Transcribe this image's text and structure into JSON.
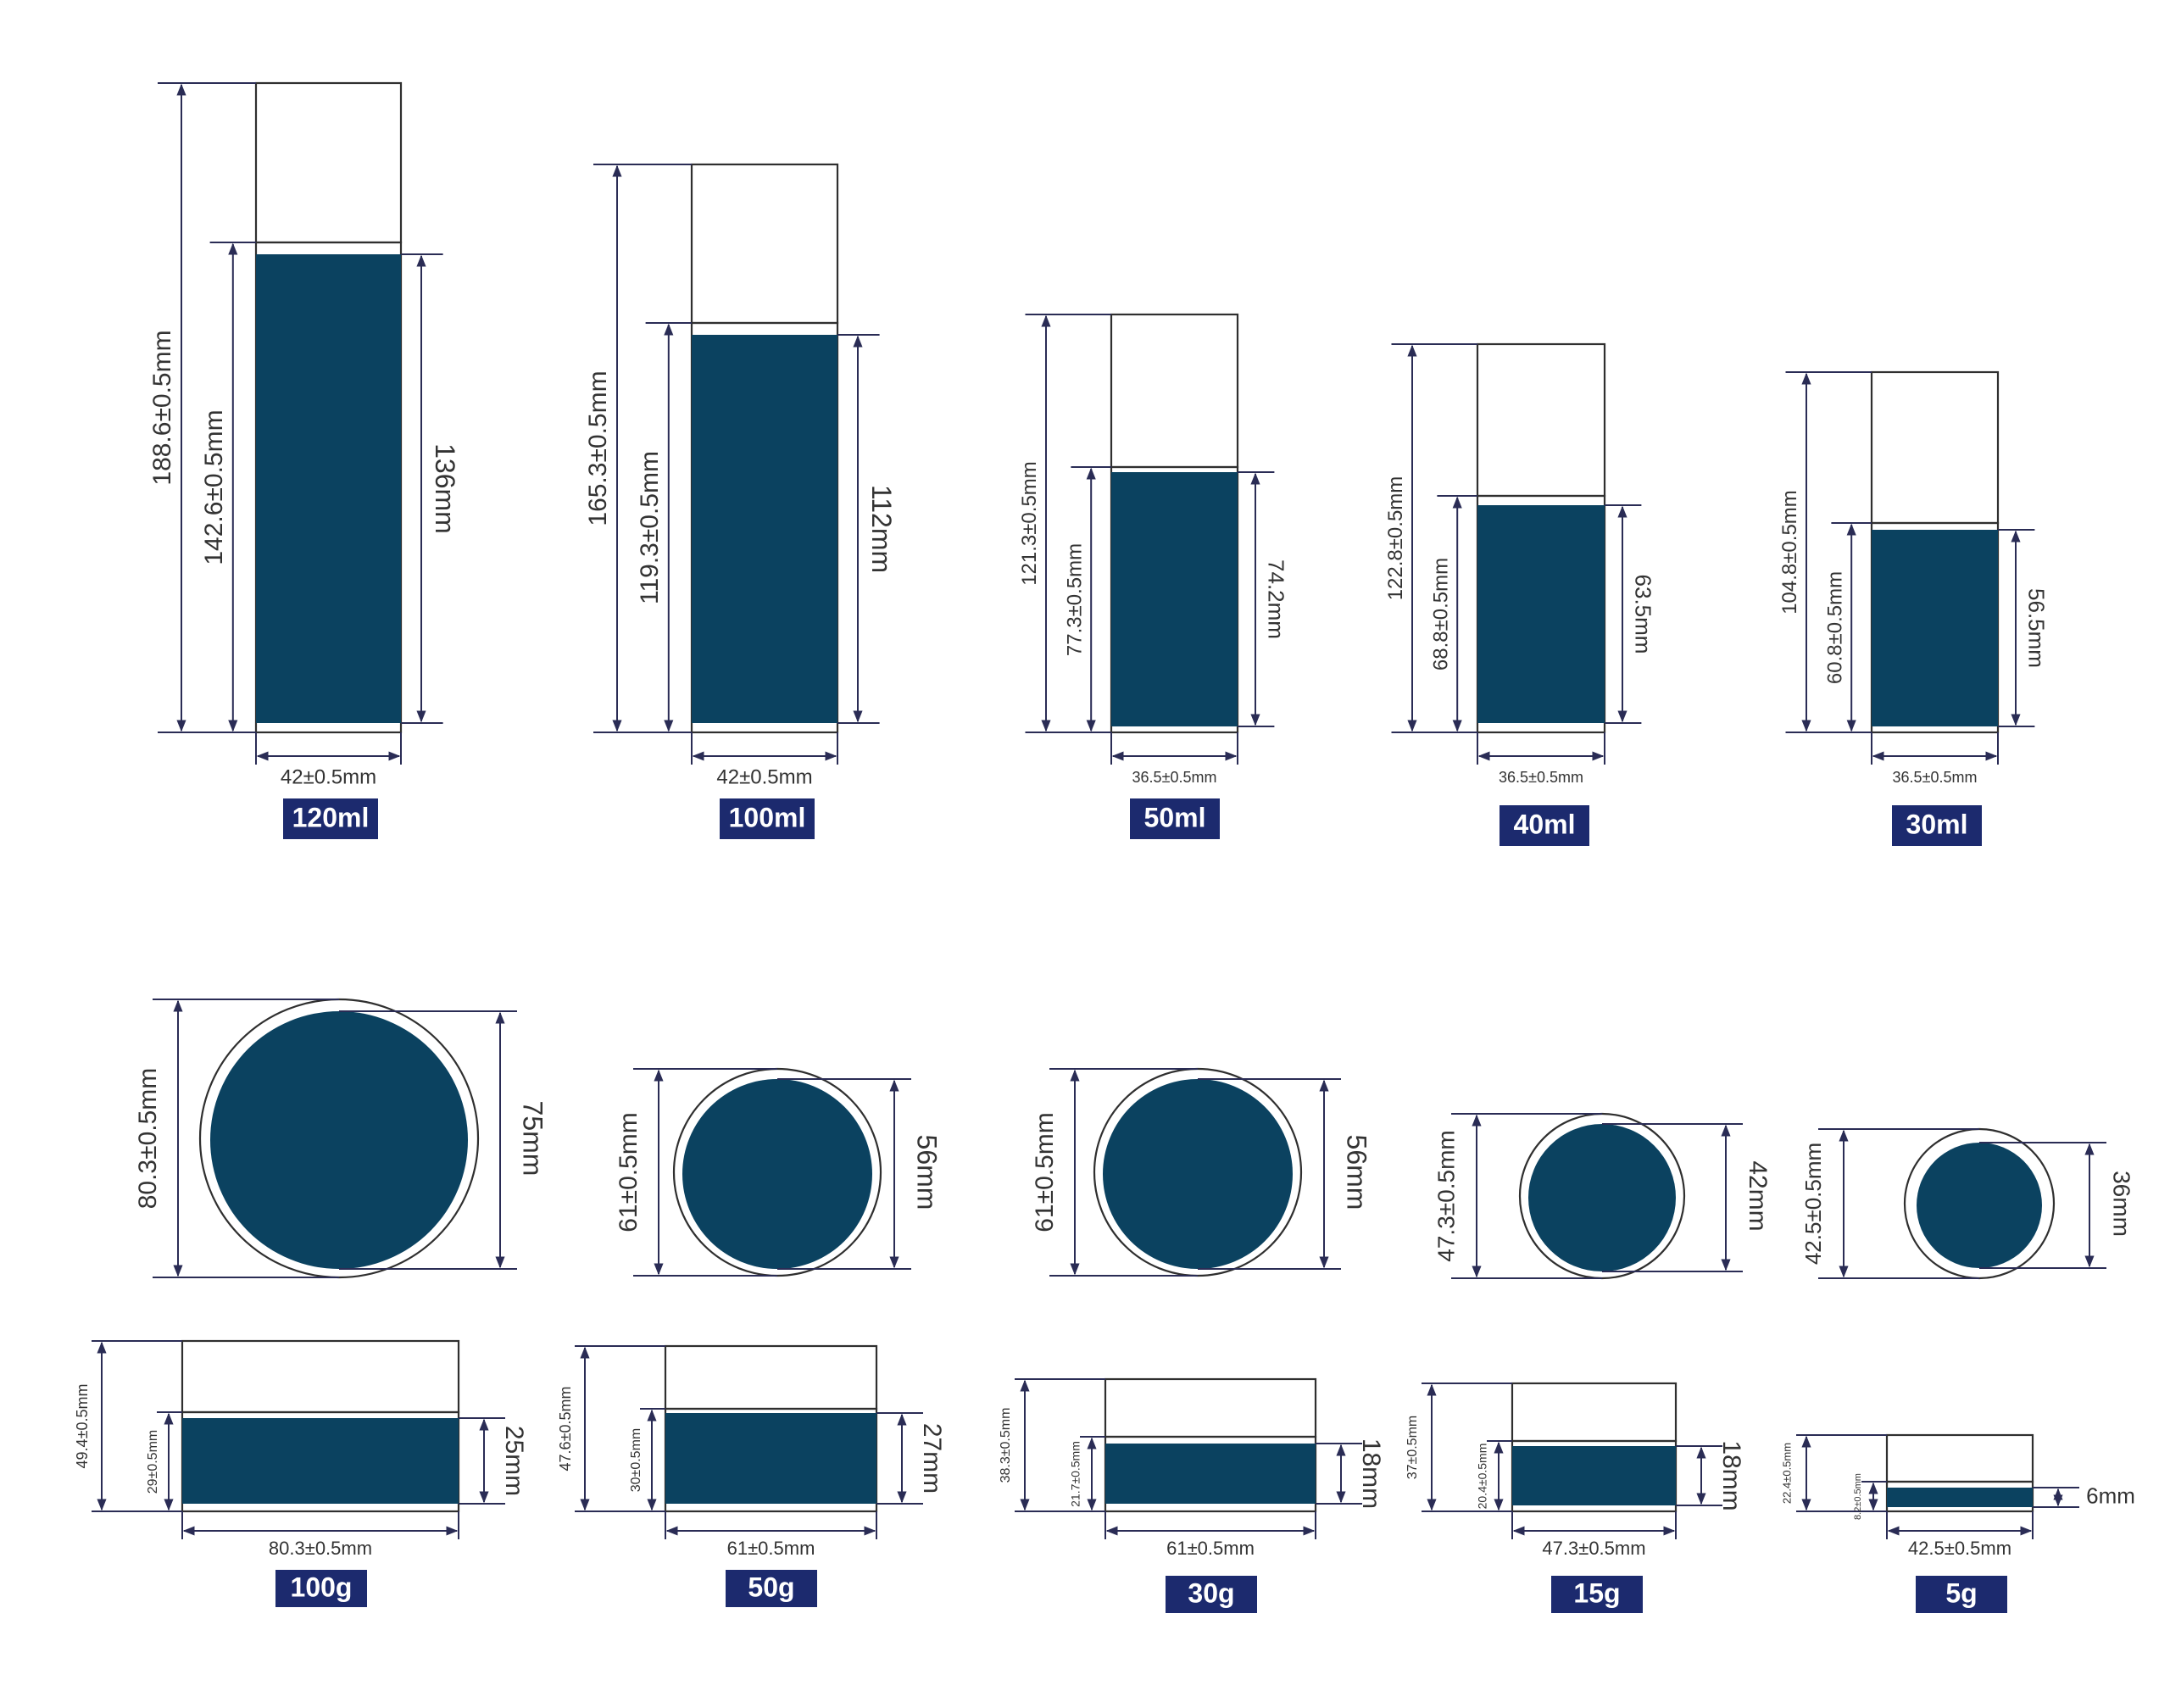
{
  "colors": {
    "fill": "#0b4260",
    "dimension_line": "#2a2c55",
    "badge": "#1c2a6e",
    "outline": "#2f2f2f"
  },
  "bottles": [
    {
      "id": "bottle-120ml",
      "capacity": "120ml",
      "total_height": "188.6±0.5mm",
      "body_height": "142.6±0.5mm",
      "fill_height": "136mm",
      "width": "42±0.5mm"
    },
    {
      "id": "bottle-100ml",
      "capacity": "100ml",
      "total_height": "165.3±0.5mm",
      "body_height": "119.3±0.5mm",
      "fill_height": "112mm",
      "width": "42±0.5mm"
    },
    {
      "id": "bottle-50ml",
      "capacity": "50ml",
      "total_height": "121.3±0.5mm",
      "body_height": "77.3±0.5mm",
      "fill_height": "74.2mm",
      "width": "36.5±0.5mm"
    },
    {
      "id": "bottle-40ml",
      "capacity": "40ml",
      "total_height": "122.8±0.5mm",
      "body_height": "68.8±0.5mm",
      "fill_height": "63.5mm",
      "width": "36.5±0.5mm"
    },
    {
      "id": "bottle-30ml",
      "capacity": "30ml",
      "total_height": "104.8±0.5mm",
      "body_height": "60.8±0.5mm",
      "fill_height": "56.5mm",
      "width": "36.5±0.5mm"
    }
  ],
  "jars": [
    {
      "id": "jar-100g",
      "capacity": "100g",
      "outer_diameter": "80.3±0.5mm",
      "inner_diameter": "75mm",
      "total_height": "49.4±0.5mm",
      "body_height": "29±0.5mm",
      "fill_height": "25mm",
      "width": "80.3±0.5mm"
    },
    {
      "id": "jar-50g",
      "capacity": "50g",
      "outer_diameter": "61±0.5mm",
      "inner_diameter": "56mm",
      "total_height": "47.6±0.5mm",
      "body_height": "30±0.5mm",
      "fill_height": "27mm",
      "width": "61±0.5mm"
    },
    {
      "id": "jar-30g",
      "capacity": "30g",
      "outer_diameter": "61±0.5mm",
      "inner_diameter": "56mm",
      "total_height": "38.3±0.5mm",
      "body_height": "21.7±0.5mm",
      "fill_height": "18mm",
      "width": "61±0.5mm"
    },
    {
      "id": "jar-15g",
      "capacity": "15g",
      "outer_diameter": "47.3±0.5mm",
      "inner_diameter": "42mm",
      "total_height": "37±0.5mm",
      "body_height": "20.4±0.5mm",
      "fill_height": "18mm",
      "width": "47.3±0.5mm"
    },
    {
      "id": "jar-5g",
      "capacity": "5g",
      "outer_diameter": "42.5±0.5mm",
      "inner_diameter": "36mm",
      "total_height": "22.4±0.5mm",
      "body_height": "8.2±0.5mm",
      "fill_height": "6mm",
      "width": "42.5±0.5mm"
    }
  ]
}
